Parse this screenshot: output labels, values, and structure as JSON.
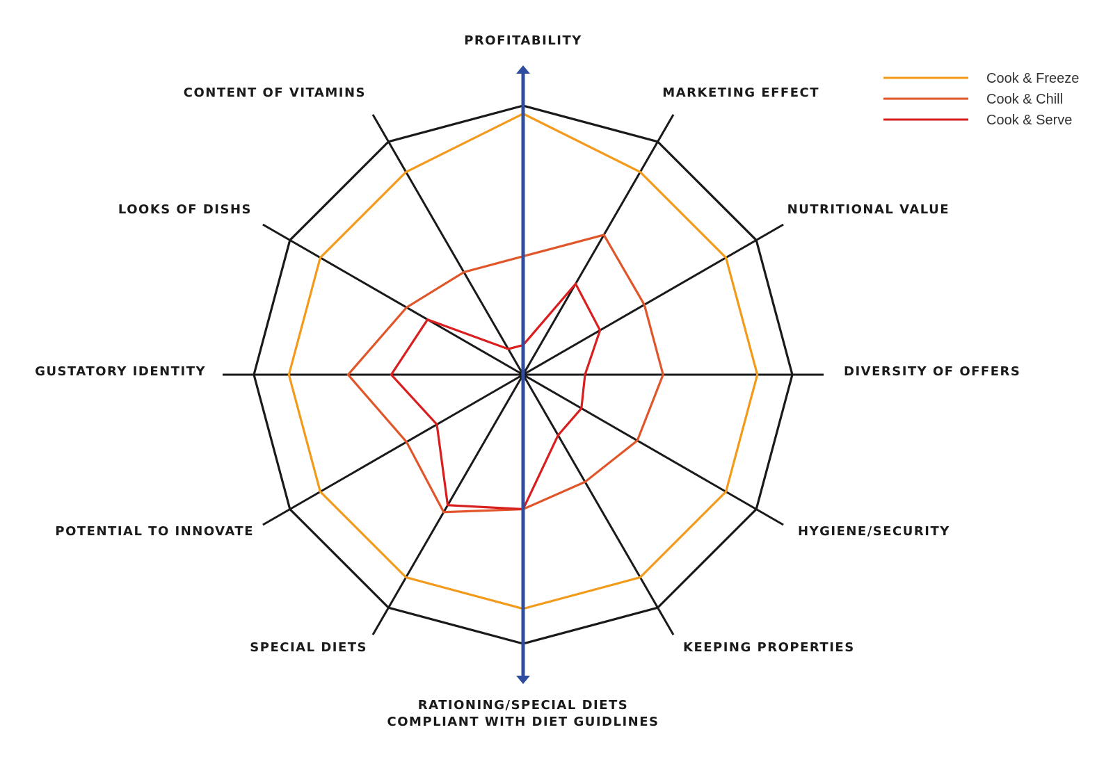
{
  "chart_data": {
    "type": "radar",
    "axes": [
      "PROFITABILITY",
      "MARKETING EFFECT",
      "NUTRITIONAL VALUE",
      "DIVERSITY OF OFFERS",
      "HYGIENE/SECURITY",
      "KEEPING PROPERTIES",
      "RATIONING/SPECIAL DIETS COMPLIANT WITH DIET GUIDLINES",
      "SPECIAL DIETS",
      "POTENTIAL TO INNOVATE",
      "GUSTATORY IDENTITY",
      "LOOKS OF DISHS",
      "CONTENT OF VITAMINS"
    ],
    "axis_label_lines": [
      [
        "PROFITABILITY"
      ],
      [
        "MARKETING EFFECT"
      ],
      [
        "NUTRITIONAL VALUE"
      ],
      [
        "DIVERSITY OF OFFERS"
      ],
      [
        "HYGIENE/SECURITY"
      ],
      [
        "KEEPING PROPERTIES"
      ],
      [
        "RATIONING/SPECIAL DIETS",
        "COMPLIANT WITH DIET GUIDLINES"
      ],
      [
        "SPECIAL DIETS"
      ],
      [
        "POTENTIAL TO INNOVATE"
      ],
      [
        "GUSTATORY IDENTITY"
      ],
      [
        "LOOKS OF DISHS"
      ],
      [
        "CONTENT OF VITAMINS"
      ]
    ],
    "range": [
      0,
      1
    ],
    "rings": [
      0.87,
      1
    ],
    "series": [
      {
        "name": "Cook & Freeze",
        "color": "#F29A1A",
        "values": [
          0.97,
          0.87,
          0.87,
          0.87,
          0.87,
          0.87,
          0.87,
          0.87,
          0.87,
          0.87,
          0.87,
          0.87
        ]
      },
      {
        "name": "Cook & Chill",
        "color": "#E0562A",
        "values": [
          0.44,
          0.6,
          0.52,
          0.52,
          0.49,
          0.46,
          0.5,
          0.59,
          0.5,
          0.65,
          0.5,
          0.44
        ]
      },
      {
        "name": "Cook & Serve",
        "color": "#D81E1E",
        "values": [
          0.11,
          0.39,
          0.33,
          0.23,
          0.25,
          0.26,
          0.5,
          0.56,
          0.37,
          0.49,
          0.41,
          0.11
        ]
      }
    ],
    "highlight_axis": {
      "axis": "PROFITABILITY",
      "color": "#2E4D9E",
      "double_arrow": true
    },
    "legend_position": "top-right",
    "grid_color": "#1a1a1a"
  }
}
